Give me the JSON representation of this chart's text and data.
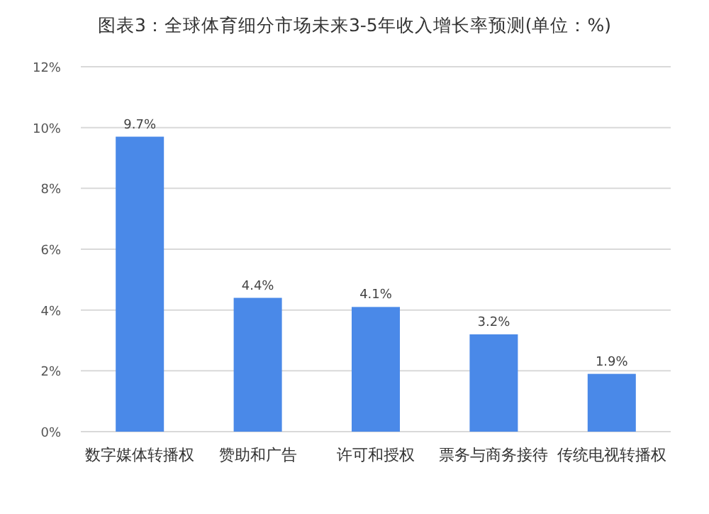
{
  "chart_data": {
    "type": "bar",
    "title": "图表3：全球体育细分市场未来3-5年收入增长率预测(单位：%)",
    "categories": [
      "数字媒体转播权",
      "赞助和广告",
      "许可和授权",
      "票务与商务接待",
      "传统电视转播权"
    ],
    "values": [
      9.7,
      4.4,
      4.1,
      3.2,
      1.9
    ],
    "color": "#4a89e8",
    "ylim": [
      0,
      12
    ],
    "yticks": [
      {
        "value": 0,
        "label": "0%"
      },
      {
        "value": 2,
        "label": "2%"
      },
      {
        "value": 4,
        "label": "4%"
      },
      {
        "value": 6,
        "label": "6%"
      },
      {
        "value": 8,
        "label": "8%"
      },
      {
        "value": 10,
        "label": "10%"
      },
      {
        "value": 12,
        "label": "12%"
      }
    ],
    "value_labels": [
      "9.7%",
      "4.4%",
      "4.1%",
      "3.2%",
      "1.9%"
    ],
    "grid": "y"
  }
}
